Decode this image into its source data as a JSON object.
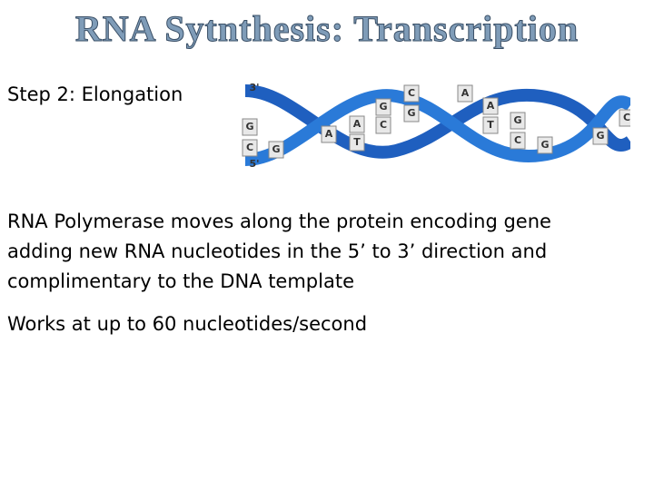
{
  "header": {
    "title": "RNA Sytnthesis: Transcription"
  },
  "step": "Step 2: Elongation",
  "figure": {
    "strand_labels": [
      "3'",
      "5'"
    ],
    "bases": [
      "G",
      "C",
      "G",
      "A",
      "T",
      "A",
      "G",
      "C",
      "C",
      "G",
      "A",
      "A",
      "T",
      "G",
      "C",
      "G",
      "G",
      "C"
    ]
  },
  "body": {
    "paragraph_lines": [
      "RNA Polymerase moves along the protein encoding gene",
      "adding new RNA nucleotides in the 5’ to 3’ direction and",
      "complimentary to the DNA template"
    ],
    "rate": "Works at up to 60 nucleotides/second"
  }
}
